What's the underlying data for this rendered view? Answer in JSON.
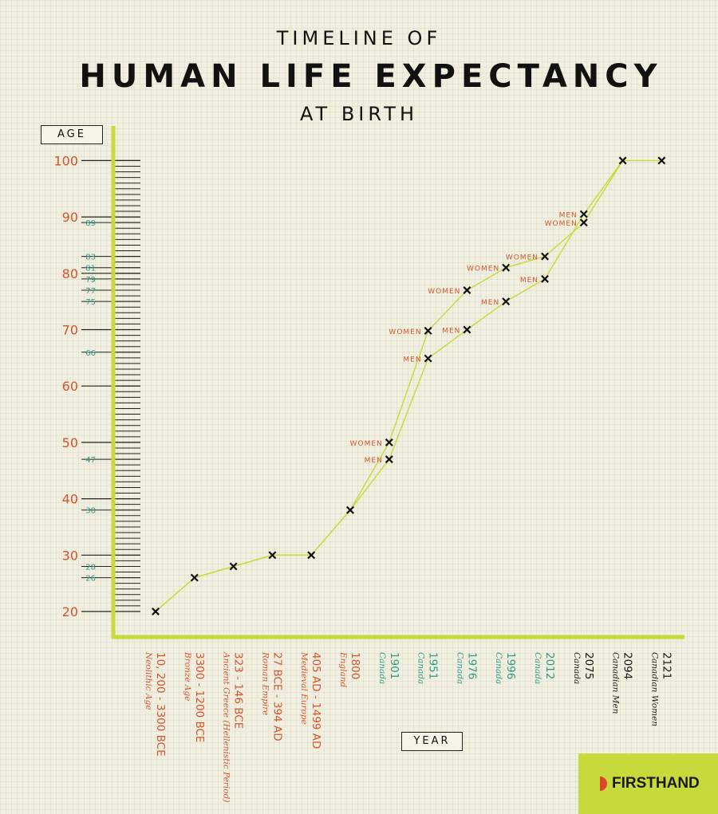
{
  "title": {
    "line1": "TIMELINE OF",
    "line2": "HUMAN LIFE EXPECTANCY",
    "line3": "AT BIRTH"
  },
  "axis_labels": {
    "y": "AGE",
    "x": "YEAR"
  },
  "logo": {
    "text": "FIRSTHAND"
  },
  "colors": {
    "background": "#f1efdf",
    "axis": "#c8d93c",
    "line": "#c8d93c",
    "orange": "#d2552d",
    "teal": "#2d9b88",
    "dark": "#1a1a1a"
  },
  "chart_data": {
    "type": "line",
    "title": "Timeline of Human Life Expectancy at Birth",
    "xlabel": "YEAR",
    "ylabel": "AGE",
    "ylim": [
      20,
      100
    ],
    "y_major_ticks": [
      20,
      30,
      40,
      50,
      60,
      70,
      80,
      90,
      100
    ],
    "y_minor_labeled_ticks": [
      26,
      28,
      38,
      47,
      66,
      75,
      77,
      79,
      81,
      83,
      89
    ],
    "categories": [
      {
        "label": "10, 200 - 3300 BCE",
        "sub": "Neolithic Age",
        "color": "orange"
      },
      {
        "label": "3300 - 1200 BCE",
        "sub": "Bronze Age",
        "color": "orange"
      },
      {
        "label": "323 - 146 BCE",
        "sub": "Ancient Greece (Hellenistic Period)",
        "color": "orange"
      },
      {
        "label": "27 BCE - 394 AD",
        "sub": "Roman Empire",
        "color": "orange"
      },
      {
        "label": "405 AD - 1499 AD",
        "sub": "Medieval Europe",
        "color": "orange"
      },
      {
        "label": "1800",
        "sub": "England",
        "color": "orange"
      },
      {
        "label": "1901",
        "sub": "Canada",
        "color": "teal"
      },
      {
        "label": "1951",
        "sub": "Canada",
        "color": "teal"
      },
      {
        "label": "1976",
        "sub": "Canada",
        "color": "teal"
      },
      {
        "label": "1996",
        "sub": "Canada",
        "color": "teal"
      },
      {
        "label": "2012",
        "sub": "Canada",
        "color": "teal"
      },
      {
        "label": "2075",
        "sub": "Canada",
        "color": "dark"
      },
      {
        "label": "2094",
        "sub": "Canadian Men",
        "color": "dark"
      },
      {
        "label": "2121",
        "sub": "Canadian Women",
        "color": "dark"
      }
    ],
    "series": [
      {
        "name": "MEN",
        "values": [
          20,
          26,
          28,
          30,
          30,
          38,
          47,
          64.9,
          70,
          75,
          79,
          90.5,
          100,
          null
        ],
        "point_labels": [
          null,
          null,
          null,
          null,
          null,
          null,
          "MEN",
          "MEN",
          "MEN",
          "MEN",
          "MEN",
          "MEN",
          null,
          null
        ]
      },
      {
        "name": "WOMEN",
        "values": [
          20,
          26,
          28,
          30,
          30,
          38,
          50,
          69.8,
          77,
          81,
          83,
          89,
          100,
          100
        ],
        "point_labels": [
          null,
          null,
          null,
          null,
          null,
          null,
          "WOMEN",
          "WOMEN",
          "WOMEN",
          "WOMEN",
          "WOMEN",
          "WOMEN",
          null,
          null
        ]
      }
    ]
  }
}
